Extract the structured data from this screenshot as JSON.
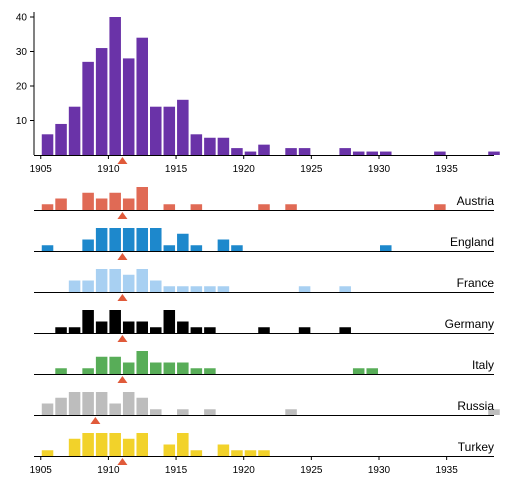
{
  "chart_data": {
    "type": "bar",
    "x_range": [
      1904.5,
      1938.5
    ],
    "x_ticks": [
      1905,
      1910,
      1915,
      1920,
      1925,
      1930,
      1935
    ],
    "main": {
      "type": "bar",
      "ylim": [
        0,
        40
      ],
      "y_ticks": [
        10,
        20,
        30,
        40
      ],
      "color": "#6a33a8",
      "marker_year": 1911,
      "values": {
        "1905": 6,
        "1906": 9,
        "1907": 14,
        "1908": 27,
        "1909": 31,
        "1910": 40,
        "1911": 28,
        "1912": 34,
        "1913": 14,
        "1914": 14,
        "1915": 16,
        "1916": 6,
        "1917": 5,
        "1918": 5,
        "1919": 2,
        "1920": 1,
        "1921": 3,
        "1923": 2,
        "1924": 2,
        "1927": 2,
        "1928": 1,
        "1929": 1,
        "1930": 1,
        "1934": 1,
        "1938": 1
      }
    },
    "panel_max": 4,
    "marker_color": "#e05a3a",
    "series": [
      {
        "name": "Austria",
        "color": "#e06a55",
        "marker_year": 1911,
        "values": {
          "1905": 1,
          "1906": 2,
          "1908": 3,
          "1909": 2,
          "1910": 3,
          "1911": 2,
          "1912": 4,
          "1914": 1,
          "1916": 1,
          "1921": 1,
          "1923": 1,
          "1934": 1
        }
      },
      {
        "name": "England",
        "color": "#1d88cc",
        "marker_year": 1911,
        "values": {
          "1905": 1,
          "1908": 2,
          "1909": 7,
          "1910": 7,
          "1911": 8,
          "1912": 6,
          "1913": 4,
          "1914": 1,
          "1915": 3,
          "1916": 1,
          "1918": 2,
          "1919": 1,
          "1930": 1
        }
      },
      {
        "name": "France",
        "color": "#a8d0f2",
        "marker_year": 1911,
        "values": {
          "1907": 2,
          "1908": 2,
          "1909": 4,
          "1910": 4,
          "1911": 3,
          "1912": 4,
          "1913": 2,
          "1914": 1,
          "1915": 1,
          "1916": 1,
          "1917": 1,
          "1918": 1,
          "1924": 1,
          "1927": 1
        }
      },
      {
        "name": "Germany",
        "color": "#000000",
        "marker_year": 1911,
        "values": {
          "1906": 1,
          "1907": 1,
          "1908": 6,
          "1909": 2,
          "1910": 9,
          "1911": 2,
          "1912": 2,
          "1913": 1,
          "1914": 5,
          "1915": 2,
          "1916": 1,
          "1917": 1,
          "1921": 1,
          "1924": 1,
          "1927": 1
        }
      },
      {
        "name": "Italy",
        "color": "#58ad58",
        "marker_year": 1911,
        "values": {
          "1906": 1,
          "1908": 1,
          "1909": 3,
          "1910": 3,
          "1911": 2,
          "1912": 5,
          "1913": 2,
          "1914": 2,
          "1915": 2,
          "1916": 1,
          "1917": 1,
          "1928": 1,
          "1929": 1
        }
      },
      {
        "name": "Russia",
        "color": "#bdbdbd",
        "marker_year": 1909,
        "values": {
          "1905": 2,
          "1906": 3,
          "1907": 6,
          "1908": 4,
          "1909": 6,
          "1910": 2,
          "1911": 4,
          "1912": 3,
          "1913": 1,
          "1915": 1,
          "1917": 1,
          "1923": 1,
          "1938": 1
        }
      },
      {
        "name": "Turkey",
        "color": "#f2d22a",
        "marker_year": 1911,
        "values": {
          "1905": 1,
          "1907": 3,
          "1908": 5,
          "1909": 4,
          "1910": 7,
          "1911": 3,
          "1912": 4,
          "1914": 2,
          "1915": 5,
          "1916": 1,
          "1918": 2,
          "1919": 1,
          "1920": 1,
          "1921": 1
        }
      }
    ]
  }
}
